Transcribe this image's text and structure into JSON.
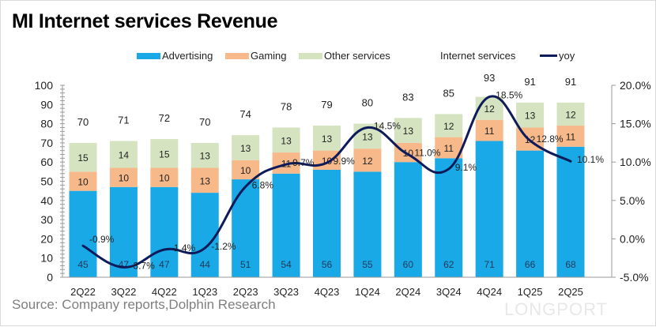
{
  "title": "MI Internet services Revenue",
  "source": "Source: Company reports,Dolphin Research",
  "watermark": "LONGPORT",
  "legend": {
    "advertising": "Advertising",
    "gaming": "Gaming",
    "other": "Other services",
    "total": "Internet services",
    "yoy": "yoy"
  },
  "colors": {
    "advertising": "#18a9e6",
    "gaming": "#f7b88a",
    "other": "#d6e3c0",
    "yoy": "#0d1b5a"
  },
  "chart_data": {
    "type": "bar",
    "title": "MI Internet services Revenue",
    "xlabel": "",
    "ylabel": "",
    "categories": [
      "2Q22",
      "3Q22",
      "4Q22",
      "1Q23",
      "2Q23",
      "3Q23",
      "4Q23",
      "1Q24",
      "2Q24",
      "3Q24",
      "4Q24",
      "1Q25",
      "2Q25"
    ],
    "series": [
      {
        "name": "Advertising",
        "type": "bar",
        "stack": true,
        "values": [
          45,
          47,
          47,
          44,
          51,
          54,
          56,
          55,
          60,
          62,
          71,
          66,
          68
        ]
      },
      {
        "name": "Gaming",
        "type": "bar",
        "stack": true,
        "values": [
          10,
          10,
          10,
          13,
          10,
          11,
          10,
          12,
          10,
          11,
          11,
          12,
          11
        ]
      },
      {
        "name": "Other services",
        "type": "bar",
        "stack": true,
        "values": [
          15,
          14,
          15,
          13,
          13,
          13,
          13,
          13,
          13,
          12,
          12,
          13,
          12
        ]
      },
      {
        "name": "Internet services",
        "type": "label",
        "values": [
          70,
          71,
          72,
          70,
          74,
          78,
          79,
          80,
          83,
          85,
          93,
          91,
          91
        ]
      },
      {
        "name": "yoy",
        "type": "line",
        "axis": "right",
        "values": [
          -0.9,
          -3.7,
          -1.4,
          -1.2,
          6.8,
          9.7,
          9.9,
          14.5,
          11.0,
          9.1,
          18.5,
          12.8,
          10.1
        ],
        "labels": [
          "-0.9%",
          "-3.7%",
          "-1.4%",
          "-1.2%",
          "6.8%",
          "9.7%",
          "9.9%",
          "14.5%",
          "11.0%",
          "9.1%",
          "18.5%",
          "12.8%",
          "10.1%"
        ]
      }
    ],
    "ylim": [
      0,
      100
    ],
    "yticks": [
      0,
      10,
      20,
      30,
      40,
      50,
      60,
      70,
      80,
      90,
      100
    ],
    "y2lim": [
      -5,
      20
    ],
    "y2ticks": [
      "-5.0%",
      "0.0%",
      "5.0%",
      "10.0%",
      "15.0%",
      "20.0%"
    ],
    "y2tick_values": [
      -5,
      0,
      5,
      10,
      15,
      20
    ],
    "grid": false,
    "legend_position": "top"
  }
}
